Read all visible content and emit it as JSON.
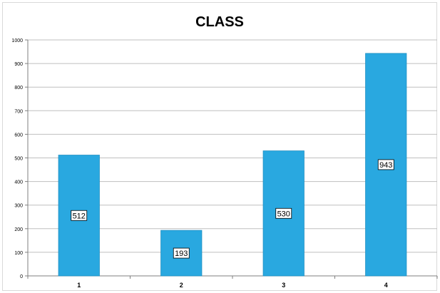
{
  "chart_data": {
    "type": "bar",
    "title": "CLASS",
    "categories": [
      "1",
      "2",
      "3",
      "4"
    ],
    "values": [
      512,
      193,
      530,
      943
    ],
    "ylim": [
      0,
      1000
    ],
    "yticks": [
      0,
      100,
      200,
      300,
      400,
      500,
      600,
      700,
      800,
      900,
      1000
    ],
    "xlabel": "",
    "ylabel": "",
    "grid": true,
    "legend": "none",
    "colors": {
      "bar": "#29a8e0",
      "bar_edge": "#1f8fc2",
      "grid": "#bfbfbf",
      "axis": "#7f7f7f"
    }
  }
}
